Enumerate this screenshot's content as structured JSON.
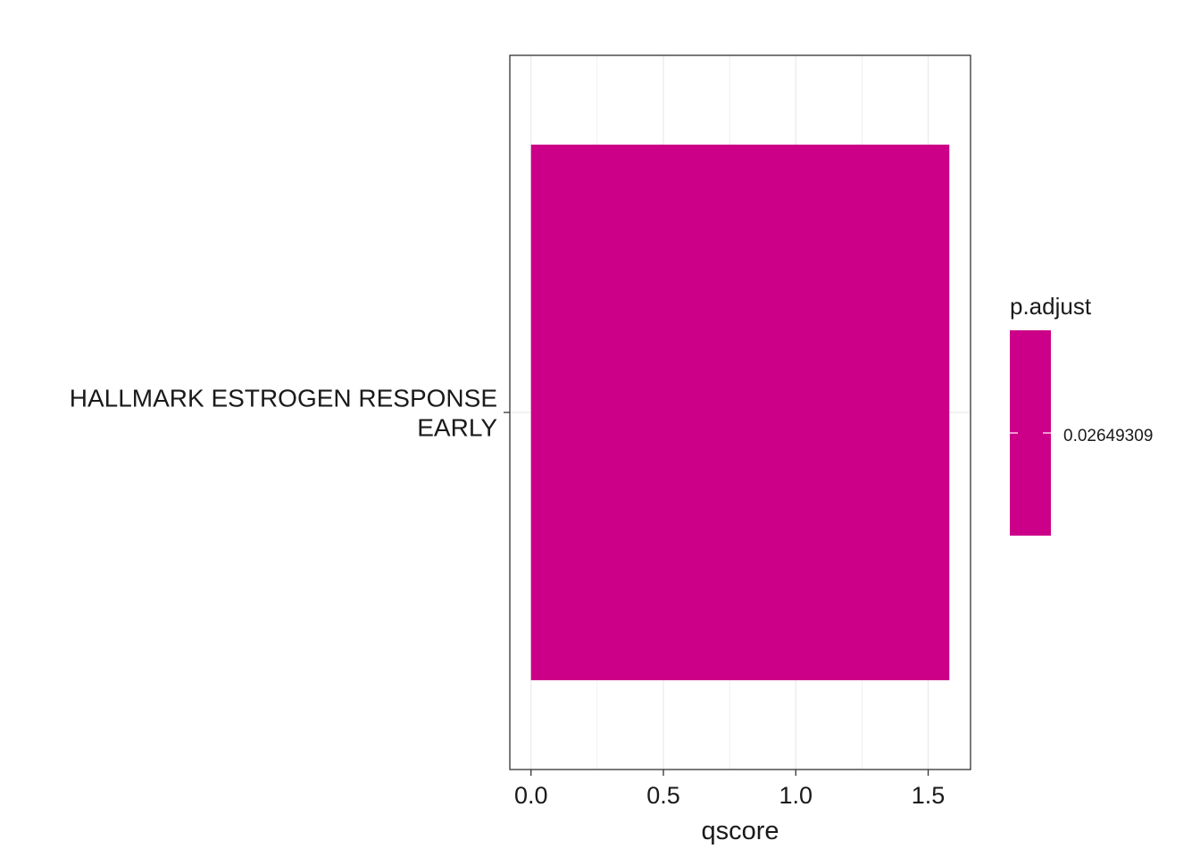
{
  "chart_data": {
    "type": "bar",
    "orientation": "horizontal",
    "categories": [
      [
        "HALLMARK ESTROGEN RESPONSE",
        "EARLY"
      ]
    ],
    "values": [
      1.58
    ],
    "xlabel": "qscore",
    "ylabel": "",
    "xlim": [
      -0.08,
      1.66
    ],
    "x_ticks": [
      0.0,
      0.5,
      1.0,
      1.5
    ],
    "x_tick_labels": [
      "0.0",
      "0.5",
      "1.0",
      "1.5"
    ],
    "grid": true,
    "legend": {
      "title": "p.adjust",
      "placement": "right",
      "value_label": "0.02649309",
      "value": 0.02649309
    },
    "colors": {
      "bar": "#CC0088",
      "grid": "#EBEBEB",
      "panel_border": "#333333"
    }
  }
}
